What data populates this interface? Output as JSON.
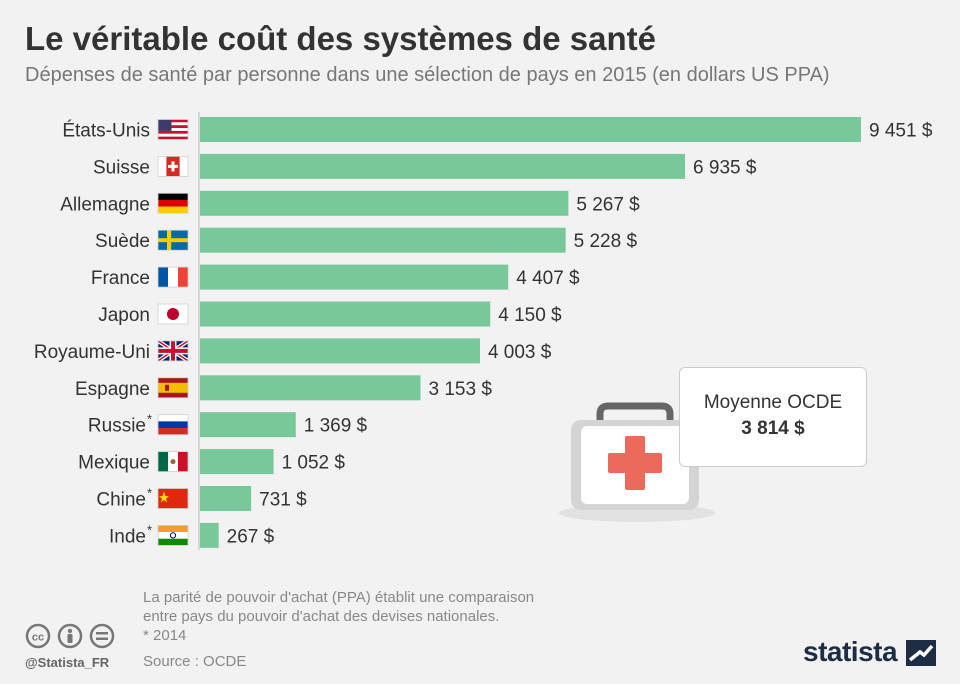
{
  "header": {
    "title": "Le véritable coût des systèmes de santé",
    "subtitle": "Dépenses de santé par personne dans une sélection de pays en 2015 (en dollars US PPA)"
  },
  "chart_data": {
    "type": "bar",
    "orientation": "horizontal",
    "categories": [
      "États-Unis",
      "Suisse",
      "Allemagne",
      "Suède",
      "France",
      "Japon",
      "Royaume-Uni",
      "Espagne",
      "Russie",
      "Mexique",
      "Chine",
      "Inde"
    ],
    "category_footnote_marks": [
      "",
      "",
      "",
      "",
      "",
      "",
      "",
      "",
      "*",
      "",
      "*",
      "*"
    ],
    "values": [
      9451,
      6935,
      5267,
      5228,
      4407,
      4150,
      4003,
      3153,
      1369,
      1052,
      731,
      267
    ],
    "value_labels": [
      "9 451 $",
      "6 935 $",
      "5 267 $",
      "5 228 $",
      "4 407 $",
      "4 150 $",
      "4 003 $",
      "3 153 $",
      "1 369 $",
      "1 052 $",
      "731 $",
      "267 $"
    ],
    "flags": [
      "us-flag-icon",
      "ch-flag-icon",
      "de-flag-icon",
      "se-flag-icon",
      "fr-flag-icon",
      "jp-flag-icon",
      "gb-flag-icon",
      "es-flag-icon",
      "ru-flag-icon",
      "mx-flag-icon",
      "cn-flag-icon",
      "in-flag-icon"
    ],
    "bar_color": "#78c89a",
    "xlim": [
      0,
      9451
    ],
    "grid": false,
    "legend": "none"
  },
  "annotation": {
    "label": "Moyenne OCDE",
    "value": "3 814 $",
    "icon": "first-aid-kit-icon"
  },
  "notes": {
    "line1": "La parité de pouvoir d'achat (PPA) établit une comparaison",
    "line2": "entre pays du pouvoir d'achat des devises nationales.",
    "line3": "* 2014",
    "source": "Source : OCDE"
  },
  "footer": {
    "handle": "@Statista_FR",
    "logo": "statista",
    "license_icons": [
      "cc-icon",
      "by-icon",
      "nd-icon"
    ]
  }
}
